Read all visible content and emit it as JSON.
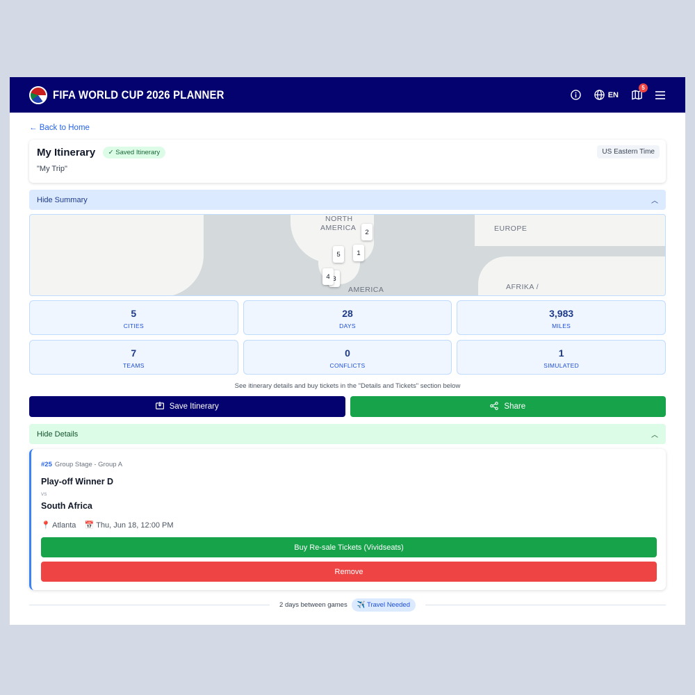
{
  "header": {
    "title": "FIFA WORLD CUP 2026 PLANNER",
    "lang": "EN",
    "map_badge": "5"
  },
  "back_link": "← Back to Home",
  "itinerary": {
    "title": "My Itinerary",
    "status": "✓ Saved Itinerary",
    "name": "\"My Trip\"",
    "timezone": "US Eastern Time"
  },
  "summary_toggle": "Hide Summary",
  "map": {
    "labels": [
      "NORTH",
      "AMERICA",
      "EUROPE",
      "AFRIKA /",
      "AMERICA"
    ],
    "pins": [
      "1",
      "2",
      "3",
      "4",
      "5"
    ]
  },
  "stats": [
    {
      "value": "5",
      "label": "CITIES"
    },
    {
      "value": "28",
      "label": "DAYS"
    },
    {
      "value": "3,983",
      "label": "MILES"
    },
    {
      "value": "7",
      "label": "TEAMS"
    },
    {
      "value": "0",
      "label": "CONFLICTS"
    },
    {
      "value": "1",
      "label": "SIMULATED"
    }
  ],
  "note": "See itinerary details and buy tickets in the \"Details and Tickets\" section below",
  "actions": {
    "save": "Save Itinerary",
    "share": "Share"
  },
  "details_toggle": "Hide Details",
  "match": {
    "number": "#25",
    "stage": "Group Stage - Group A",
    "team1": "Play-off Winner D",
    "vs": "vs",
    "team2": "South Africa",
    "city": "Atlanta",
    "datetime": "Thu, Jun 18, 12:00 PM",
    "buy": "Buy Re-sale Tickets (Vividseats)",
    "remove": "Remove"
  },
  "gap": {
    "text": "2 days between games",
    "badge": "✈️ Travel Needed"
  },
  "colors": {
    "navy": "#04026e",
    "green": "#16a34a",
    "red": "#ef4444",
    "blue": "#2563eb"
  }
}
